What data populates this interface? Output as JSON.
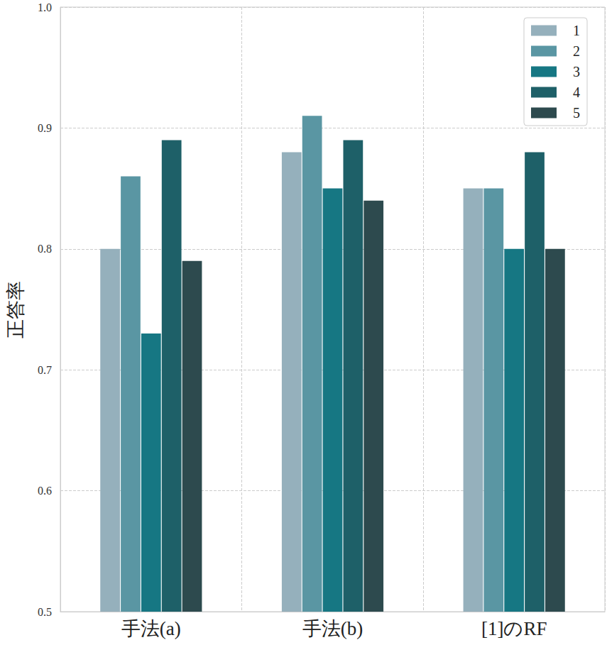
{
  "chart_data": {
    "type": "bar",
    "y_label": "正答率",
    "categories": [
      "手法(a)",
      "手法(b)",
      "[1]のRF"
    ],
    "series": [
      {
        "name": "1",
        "color": "#95b0bc",
        "values": [
          0.8,
          0.88,
          0.85
        ]
      },
      {
        "name": "2",
        "color": "#5a96a3",
        "values": [
          0.86,
          0.91,
          0.85
        ]
      },
      {
        "name": "3",
        "color": "#167783",
        "values": [
          0.73,
          0.85,
          0.8
        ]
      },
      {
        "name": "4",
        "color": "#1e6068",
        "values": [
          0.89,
          0.89,
          0.88
        ]
      },
      {
        "name": "5",
        "color": "#2d4a4e",
        "values": [
          0.79,
          0.84,
          0.8
        ]
      }
    ],
    "ylim": [
      0.5,
      1.0
    ],
    "yticks": [
      0.5,
      0.6,
      0.7,
      0.8,
      0.9,
      {
        "value": 1.0,
        "label": "1.0"
      }
    ],
    "grid": true,
    "legend": "upper right"
  }
}
